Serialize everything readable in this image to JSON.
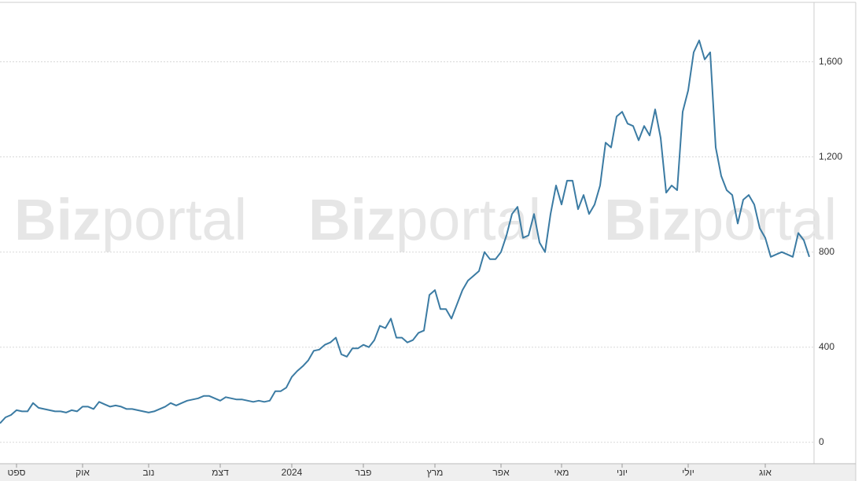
{
  "chart_data": {
    "type": "line",
    "watermark": [
      "Biz",
      "portal"
    ],
    "series": [
      {
        "color": "#3b7ba3",
        "values": [
          80,
          105,
          115,
          135,
          130,
          130,
          165,
          145,
          140,
          135,
          130,
          130,
          125,
          135,
          130,
          150,
          150,
          140,
          170,
          160,
          150,
          155,
          150,
          140,
          140,
          135,
          130,
          125,
          130,
          140,
          150,
          165,
          155,
          165,
          175,
          180,
          185,
          195,
          195,
          185,
          175,
          190,
          185,
          180,
          180,
          175,
          170,
          175,
          170,
          175,
          215,
          215,
          230,
          275,
          300,
          320,
          345,
          385,
          390,
          410,
          420,
          440,
          370,
          360,
          395,
          395,
          410,
          400,
          430,
          490,
          480,
          520,
          440,
          440,
          420,
          430,
          460,
          470,
          620,
          640,
          560,
          560,
          520,
          580,
          640,
          680,
          700,
          720,
          800,
          770,
          770,
          800,
          870,
          960,
          990,
          860,
          870,
          960,
          840,
          800,
          960,
          1080,
          1000,
          1100,
          1100,
          980,
          1040,
          960,
          1000,
          1080,
          1260,
          1240,
          1370,
          1390,
          1340,
          1330,
          1270,
          1330,
          1290,
          1400,
          1280,
          1050,
          1080,
          1060,
          1390,
          1480,
          1640,
          1690,
          1610,
          1640,
          1240,
          1120,
          1060,
          1040,
          920,
          1020,
          1040,
          1000,
          900,
          860,
          780,
          790,
          800,
          790,
          780,
          880,
          850,
          780
        ]
      }
    ],
    "ylim": [
      -90,
      1850
    ],
    "yticks": [
      0,
      400,
      800,
      {
        "value": 1200,
        "label": "1,200"
      },
      {
        "value": 1600,
        "label": "1,600"
      }
    ],
    "xticks": [
      {
        "value": 3,
        "label": "ספט"
      },
      {
        "value": 15,
        "label": "אוק"
      },
      {
        "value": 27,
        "label": "נוב"
      },
      {
        "value": 40,
        "label": "דצמ"
      },
      {
        "value": 53,
        "label": "2024"
      },
      {
        "value": 66,
        "label": "פבר"
      },
      {
        "value": 79,
        "label": "מרץ"
      },
      {
        "value": 91,
        "label": "אפר"
      },
      {
        "value": 102,
        "label": "מאי"
      },
      {
        "value": 113,
        "label": "יוני"
      },
      {
        "value": 125,
        "label": "יולי"
      },
      {
        "value": 139,
        "label": "אוג"
      }
    ],
    "grid": true
  }
}
